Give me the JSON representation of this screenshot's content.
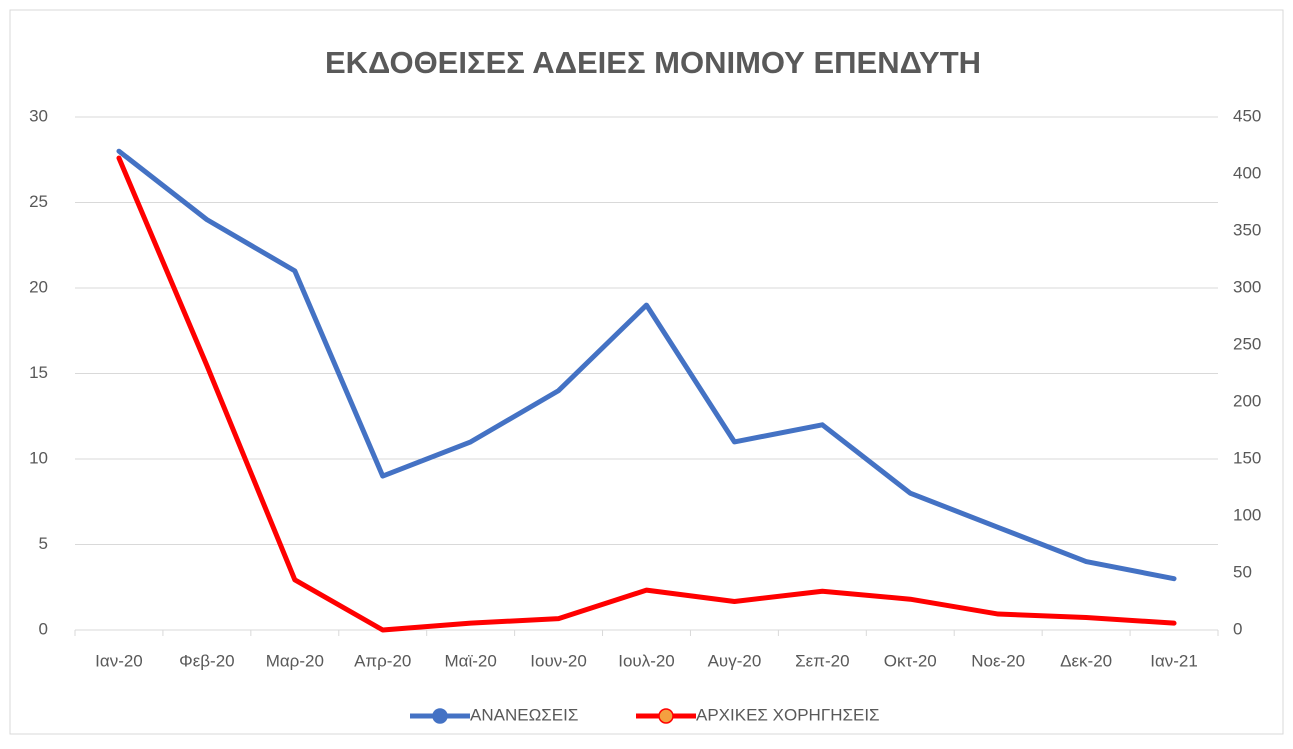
{
  "chart_data": {
    "type": "line",
    "title": "ΕΚΔΟΘΕΙΣΕΣ ΑΔΕΙΕΣ ΜΟΝΙΜΟΥ ΕΠΕΝΔΥΤΗ",
    "categories": [
      "Ιαν-20",
      "Φεβ-20",
      "Μαρ-20",
      "Απρ-20",
      "Μαϊ-20",
      "Ιουν-20",
      "Ιουλ-20",
      "Αυγ-20",
      "Σεπ-20",
      "Οκτ-20",
      "Νοε-20",
      "Δεκ-20",
      "Ιαν-21"
    ],
    "series": [
      {
        "name": "ΑΝΑΝΕΩΣΕΙΣ",
        "color": "#4472c4",
        "values": [
          28,
          24,
          21,
          9,
          11,
          14,
          19,
          11,
          12,
          8,
          6,
          4,
          3
        ]
      },
      {
        "name": "ΑΡΧΙΚΕΣ ΧΟΡΗΓΗΣΕΙΣ",
        "color": "#ff0000",
        "axis": "y2",
        "values": [
          414,
          232,
          44,
          0,
          6,
          10,
          35,
          25,
          34,
          27,
          14,
          11,
          6
        ]
      }
    ],
    "ylim": [
      0,
      30
    ],
    "yticks": [
      0,
      5,
      10,
      15,
      20,
      25,
      30
    ],
    "y2lim": [
      0,
      450
    ],
    "y2ticks": [
      0,
      50,
      100,
      150,
      200,
      250,
      300,
      350,
      400,
      450
    ],
    "grid": true,
    "legend": "bottom"
  }
}
